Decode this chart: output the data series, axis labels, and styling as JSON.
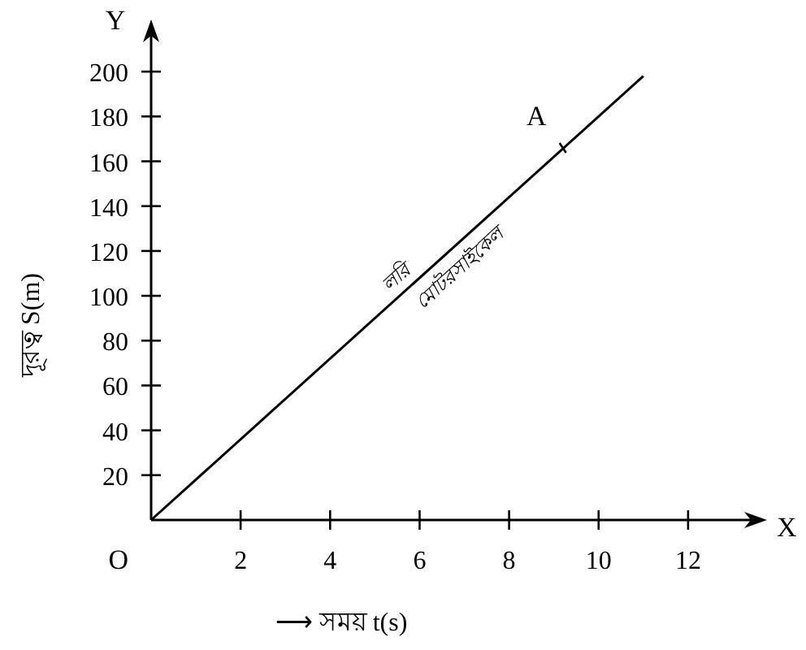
{
  "chart_data": {
    "type": "line",
    "xlabel": "⟶ সময় t(s)",
    "ylabel": "দূরত্ব S(m)",
    "x": [
      0,
      11
    ],
    "series": [
      {
        "color": "#000000",
        "values": [
          0,
          198
        ]
      }
    ],
    "xlim": [
      0,
      13.4
    ],
    "ylim": [
      0,
      216
    ],
    "xticks": [
      2,
      4,
      6,
      8,
      10,
      12
    ],
    "yticks": [
      20,
      40,
      60,
      80,
      100,
      120,
      140,
      160,
      180,
      200
    ],
    "grid": false,
    "marker": "none",
    "line_style": "solid",
    "annotations": [
      {
        "text": "A",
        "x": 9.2,
        "y": 166
      },
      "লরি",
      "মোটরসাইকেল",
      "X",
      "Y",
      "O"
    ]
  }
}
